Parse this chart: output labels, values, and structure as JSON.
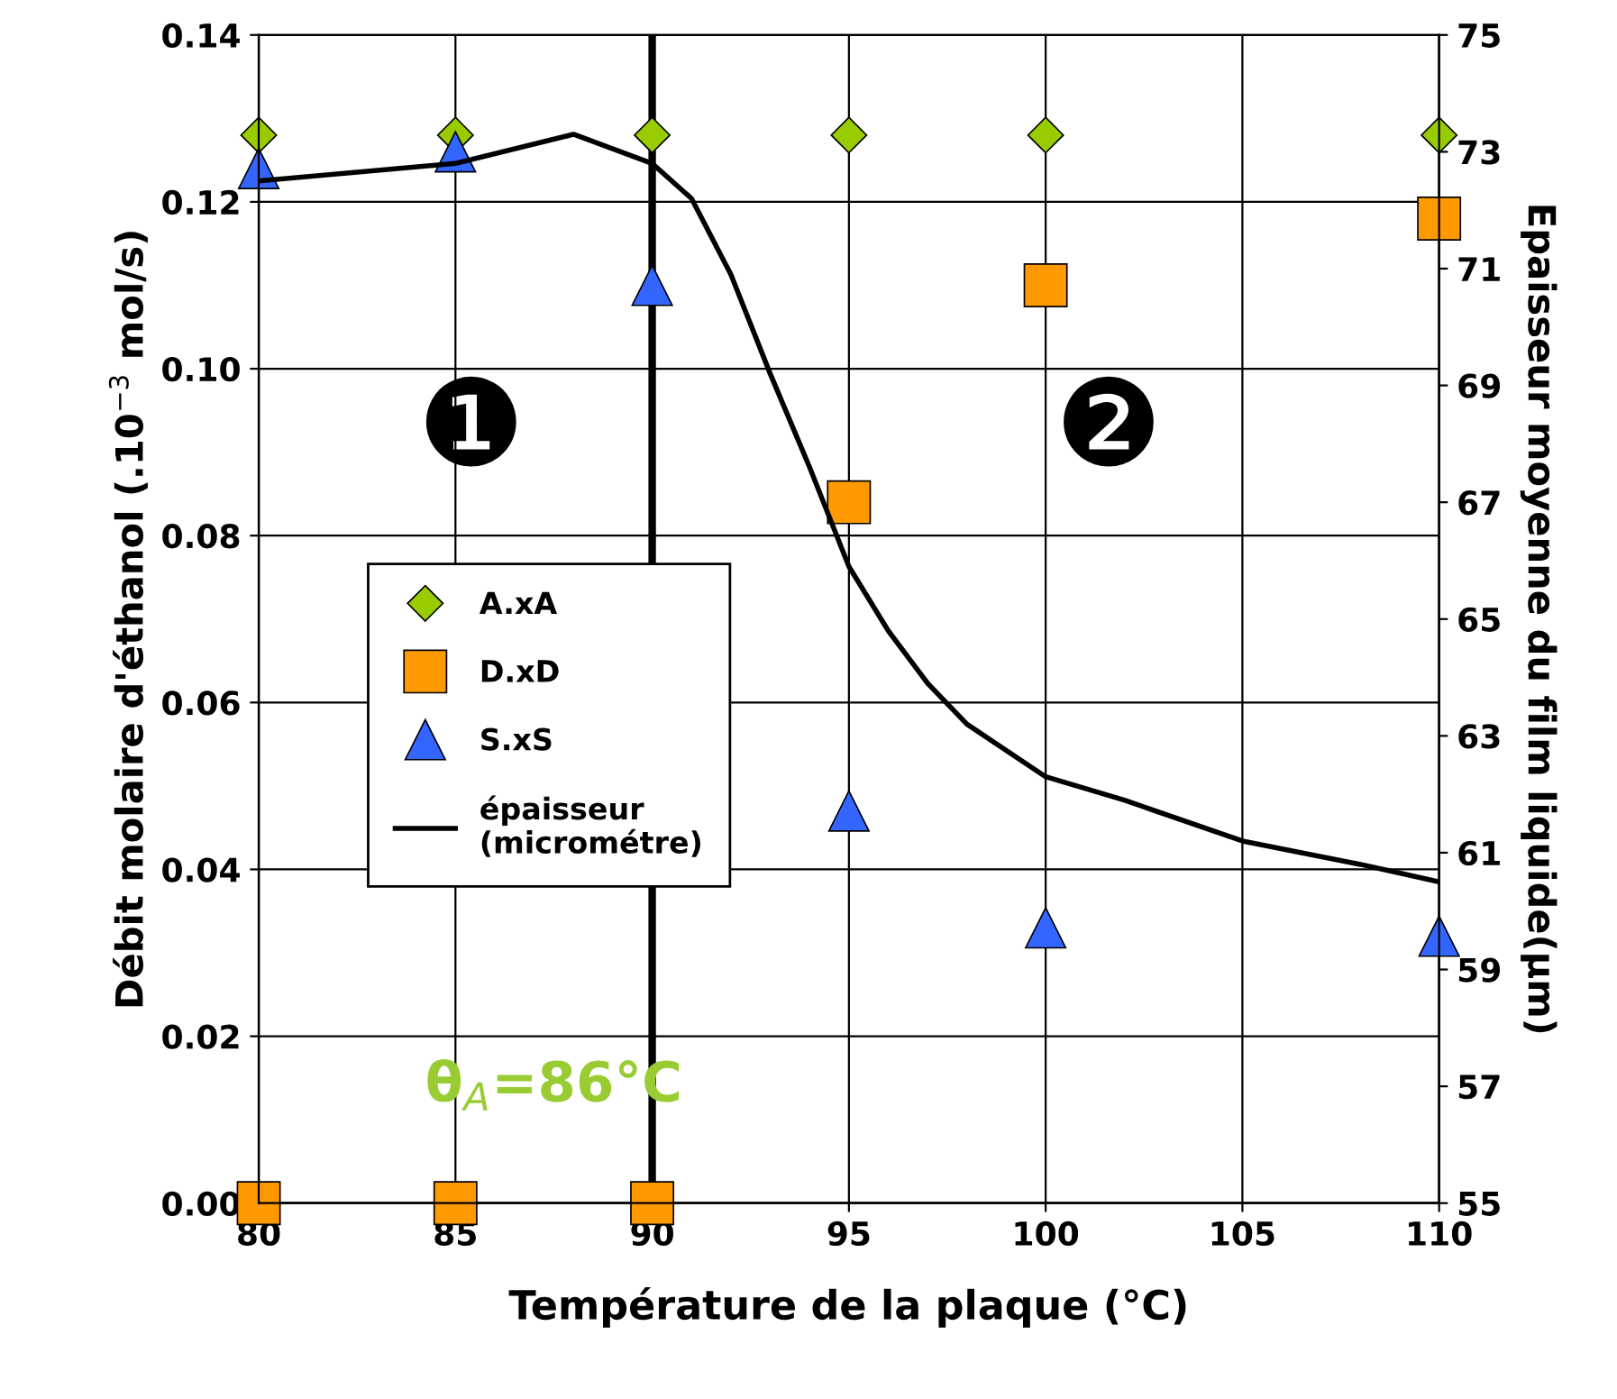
{
  "chart_data": {
    "type": "scatter",
    "xlabel": "Température de la plaque (°C)",
    "ylabel": "Débit molaire d'éthanol (.10$^{−3}$ mol/s)",
    "y2label": "Epaisseur moyenne du film liquide(µm)",
    "xlim": [
      80,
      110
    ],
    "xticks": [
      80,
      85,
      90,
      95,
      100,
      105,
      110
    ],
    "ylim": [
      0,
      0.14
    ],
    "yticks": [
      {
        "value": 0,
        "label": "0.00"
      },
      {
        "value": 0.02,
        "label": "0.02"
      },
      {
        "value": 0.04,
        "label": "0.04"
      },
      {
        "value": 0.06,
        "label": "0.06"
      },
      {
        "value": 0.08,
        "label": "0.08"
      },
      {
        "value": 0.1,
        "label": "0.10"
      },
      {
        "value": 0.12,
        "label": "0.12"
      },
      {
        "value": 0.14,
        "label": "0.14"
      }
    ],
    "y2lim": [
      55,
      75
    ],
    "y2ticks": [
      55,
      57,
      59,
      61,
      63,
      65,
      67,
      69,
      71,
      73,
      75
    ],
    "grid": true,
    "legend": "center left",
    "series": [
      {
        "name": "A.xA",
        "marker": "diamond",
        "color": "#99cc00",
        "x": [
          80,
          85,
          90,
          95,
          100,
          110
        ],
        "values": [
          0.128,
          0.128,
          0.128,
          0.128,
          0.128,
          0.128
        ]
      },
      {
        "name": "D.xD",
        "marker": "square",
        "color": "#ff9900",
        "x": [
          80,
          85,
          90,
          95,
          100,
          110
        ],
        "values": [
          0.0,
          0.0,
          0.0,
          0.084,
          0.11,
          0.118
        ]
      },
      {
        "name": "S.xS",
        "marker": "triangle",
        "color": "#3366ff",
        "x": [
          80,
          85,
          90,
          95,
          100,
          110
        ],
        "values": [
          0.124,
          0.126,
          0.11,
          0.047,
          0.033,
          0.032
        ]
      },
      {
        "name": "épaisseur\n(micrométre)",
        "type": "line",
        "axis": "y2",
        "marker": "none",
        "line_style": "solid",
        "color": "#000000",
        "x": [
          80,
          85,
          88,
          90,
          91,
          92,
          93,
          94,
          95,
          96,
          97,
          98,
          100,
          102,
          105,
          108,
          110
        ],
        "values": [
          72.5,
          72.8,
          73.3,
          72.8,
          72.2,
          70.9,
          69.2,
          67.6,
          65.9,
          64.8,
          63.9,
          63.2,
          62.3,
          61.9,
          61.2,
          60.8,
          60.5
        ]
      }
    ],
    "ref_lines": [
      {
        "axis": "x",
        "value": 90,
        "color": "#000000"
      }
    ],
    "annotations": [
      "❶",
      "❷",
      "θ$_{A}$=86°C"
    ]
  }
}
